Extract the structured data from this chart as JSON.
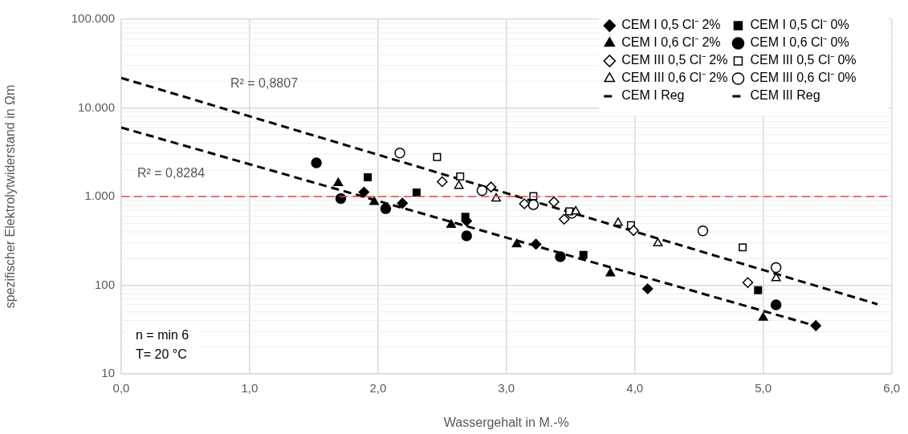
{
  "chart_data": {
    "type": "scatter",
    "xlabel": "Wassergehalt in M.-%",
    "ylabel": "spezifischer Elektrolytwiderstand in Ωm",
    "log": "y",
    "grid": true,
    "legend": "top right",
    "xlim": [
      0,
      6
    ],
    "xticks": [
      {
        "value": 0,
        "label": "0,0"
      },
      {
        "value": 1,
        "label": "1,0"
      },
      {
        "value": 2,
        "label": "2,0"
      },
      {
        "value": 3,
        "label": "3,0"
      },
      {
        "value": 4,
        "label": "4,0"
      },
      {
        "value": 5,
        "label": "5,0"
      },
      {
        "value": 6,
        "label": "6,0"
      }
    ],
    "ylim": [
      10,
      100000
    ],
    "yticks": [
      10,
      100,
      {
        "value": 1000,
        "label": "1.000"
      },
      {
        "value": 10000,
        "label": "10.000"
      },
      {
        "value": 100000,
        "label": "100.000"
      }
    ],
    "ref_lines": [
      {
        "axis": "y",
        "value": 1000,
        "color": "#f04848",
        "line_style": "dashed"
      }
    ],
    "annotations": [
      "R² = 0,8807",
      "R² = 0,8284",
      "n = min 6\nT= 20 °C"
    ],
    "series": [
      {
        "name": "CEM I 0,5 Cl⁻ 2%",
        "marker": "diamond",
        "color": "#000000",
        "x": [
          1.89,
          2.19,
          2.69,
          3.23,
          4.1,
          5.41
        ],
        "values": [
          1120,
          840,
          530,
          290,
          91,
          35
        ]
      },
      {
        "name": "CEM I 0,6 Cl⁻ 2%",
        "marker": "triangle",
        "color": "#000000",
        "x": [
          1.69,
          1.97,
          2.57,
          3.08,
          3.81,
          5.0
        ],
        "values": [
          1420,
          870,
          480,
          290,
          136,
          43
        ]
      },
      {
        "name": "CEM III 0,5 Cl⁻ 2%",
        "marker": "diamond",
        "color": "#ffffff",
        "x": [
          2.5,
          2.88,
          3.14,
          3.37,
          3.45,
          3.99,
          4.88
        ],
        "values": [
          1470,
          1280,
          830,
          870,
          555,
          414,
          107
        ]
      },
      {
        "name": "CEM III 0,6 Cl⁻ 2%",
        "marker": "triangle",
        "color": "#ffffff",
        "x": [
          2.63,
          2.92,
          3.54,
          3.87,
          4.18,
          5.1
        ],
        "values": [
          1320,
          950,
          680,
          505,
          297,
          120
        ]
      },
      {
        "name": "CEM I Reg",
        "type": "line",
        "marker": "none",
        "line_style": "dashed",
        "color": "#000000",
        "x": [
          0,
          5.4
        ],
        "values": [
          6000,
          35
        ]
      },
      {
        "name": "CEM I 0,5 Cl⁻ 0%",
        "marker": "square",
        "color": "#000000",
        "x": [
          1.92,
          2.3,
          2.68,
          3.6,
          4.96
        ],
        "values": [
          1650,
          1110,
          590,
          220,
          88
        ]
      },
      {
        "name": "CEM I 0,6 Cl⁻ 0%",
        "marker": "circle",
        "color": "#000000",
        "x": [
          1.52,
          1.71,
          2.06,
          2.69,
          3.42,
          5.1
        ],
        "values": [
          2400,
          950,
          730,
          360,
          210,
          60
        ]
      },
      {
        "name": "CEM III 0,5 Cl⁻ 0%",
        "marker": "square",
        "color": "#ffffff",
        "x": [
          2.46,
          2.64,
          3.21,
          3.49,
          3.97,
          4.84
        ],
        "values": [
          2790,
          1680,
          1010,
          680,
          475,
          267
        ]
      },
      {
        "name": "CEM III 0,6 Cl⁻ 0%",
        "marker": "circle",
        "color": "#ffffff",
        "x": [
          2.17,
          2.81,
          3.21,
          3.51,
          4.53,
          5.1
        ],
        "values": [
          3100,
          1170,
          810,
          650,
          411,
          158
        ]
      },
      {
        "name": "CEM III Reg",
        "type": "line",
        "marker": "none",
        "line_style": "dashed",
        "color": "#000000",
        "x": [
          0,
          5.89
        ],
        "values": [
          21800,
          61
        ]
      }
    ]
  }
}
